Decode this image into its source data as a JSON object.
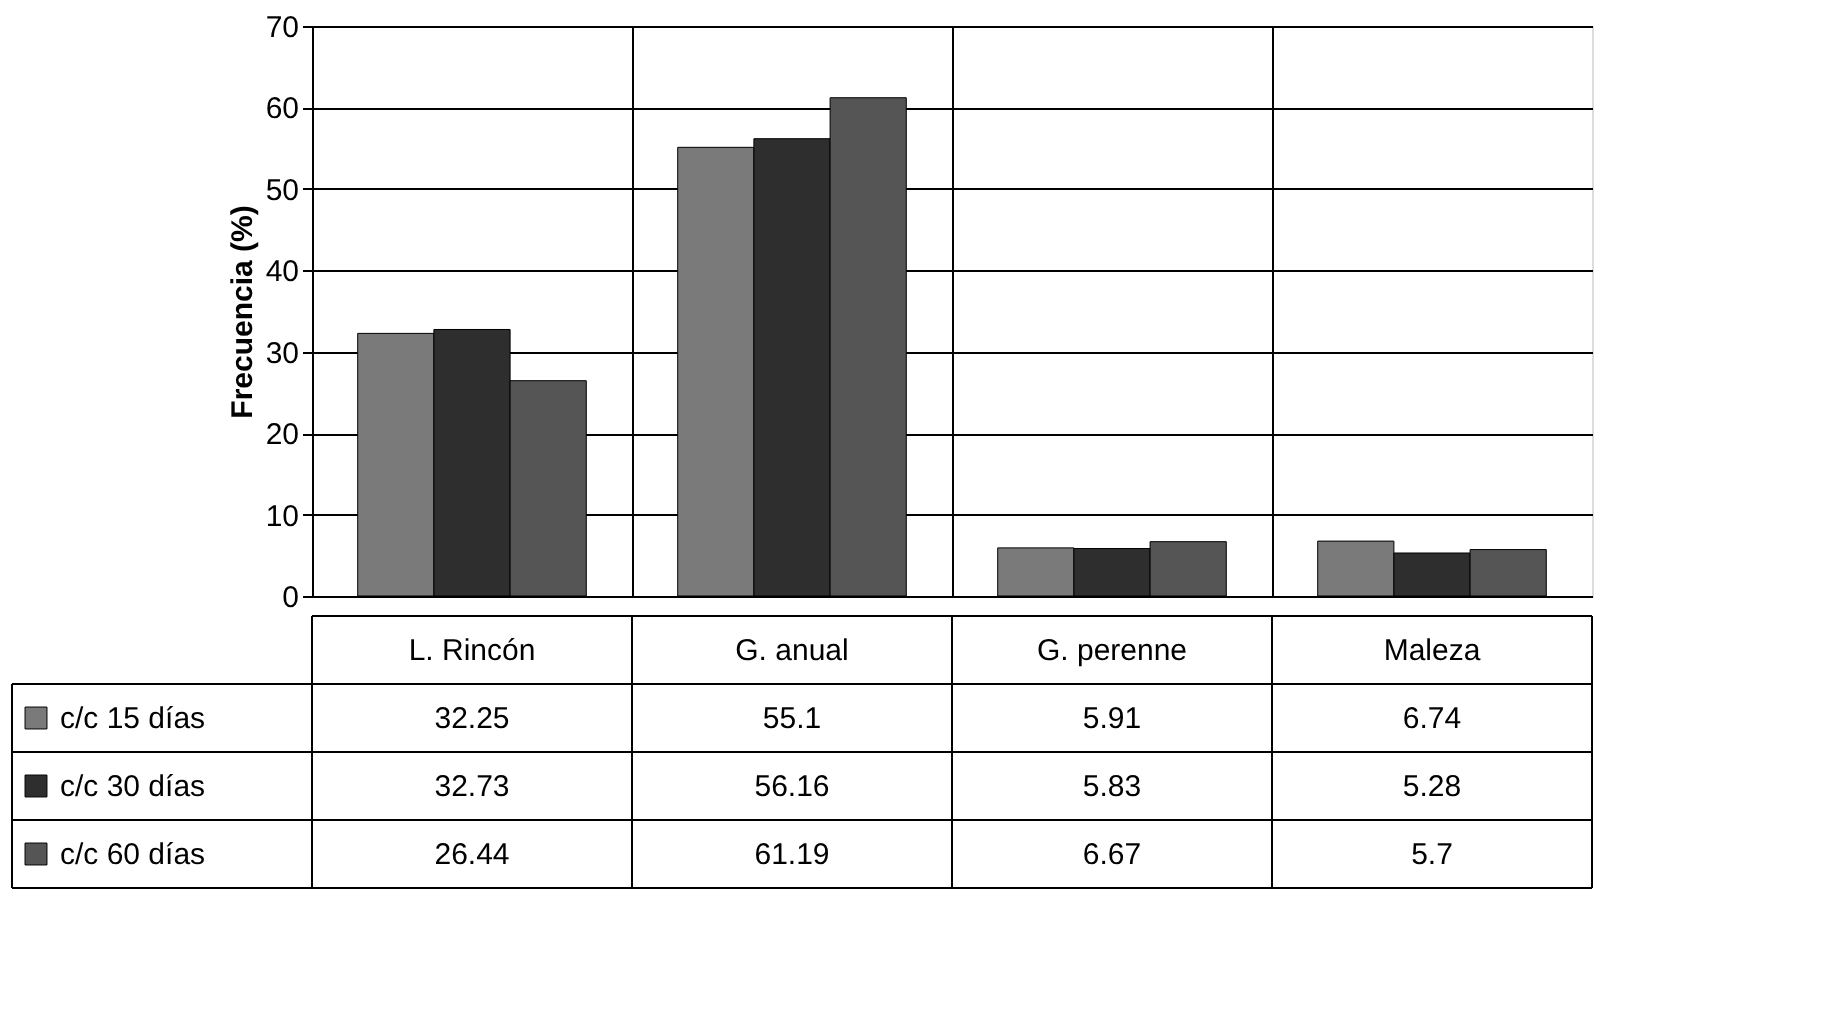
{
  "chart_data": {
    "type": "bar",
    "ylabel": "Frecuencia (%)",
    "categories": [
      "L. Rincón",
      "G. anual",
      "G. perenne",
      "Maleza"
    ],
    "series": [
      {
        "name": "c/c 15 días",
        "color": "#7a7a7a",
        "values": [
          32.25,
          55.1,
          5.91,
          6.74
        ],
        "value_labels": [
          "32.25",
          "55.1",
          "5.91",
          "6.74"
        ]
      },
      {
        "name": "c/c 30 días",
        "color": "#2e2e2e",
        "values": [
          32.73,
          56.16,
          5.83,
          5.28
        ],
        "value_labels": [
          "32.73",
          "56.16",
          "5.83",
          "5.28"
        ]
      },
      {
        "name": "c/c 60 días",
        "color": "#555555",
        "values": [
          26.44,
          61.19,
          6.67,
          5.7
        ],
        "value_labels": [
          "26.44",
          "61.19",
          "6.67",
          "5.7"
        ]
      }
    ],
    "ylim": [
      0,
      70
    ],
    "yticks": [
      0,
      10,
      20,
      30,
      40,
      50,
      60,
      70
    ],
    "grid": "y",
    "legend": "bottom left"
  }
}
